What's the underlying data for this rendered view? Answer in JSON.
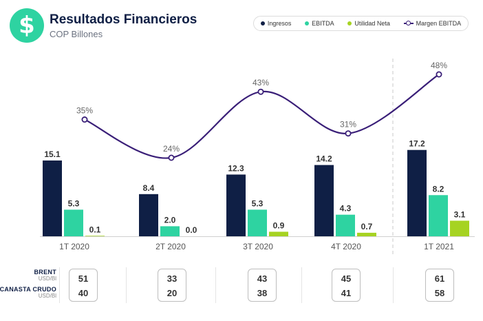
{
  "header": {
    "icon": "dollar-icon",
    "logo_glyph": "$",
    "title": "Resultados Financieros",
    "subtitle": "COP Billones"
  },
  "colors": {
    "ingresos": "#0f1f45",
    "ebitda": "#2ed3a1",
    "utilidad": "#a6d322",
    "margen": "#3a1f78"
  },
  "chart_data": {
    "type": "bar",
    "title": "Resultados Financieros",
    "subtitle": "COP Billones",
    "categories": [
      "1T 2020",
      "2T 2020",
      "3T 2020",
      "4T 2020",
      "1T 2021"
    ],
    "series": [
      {
        "name": "Ingresos",
        "type": "bar",
        "values": [
          15.1,
          8.4,
          12.3,
          14.2,
          17.2
        ],
        "labels": [
          "15.1",
          "8.4",
          "12.3",
          "14.2",
          "17.2"
        ]
      },
      {
        "name": "EBITDA",
        "type": "bar",
        "values": [
          5.3,
          2.0,
          5.3,
          4.3,
          8.2
        ],
        "labels": [
          "5.3",
          "2.0",
          "5.3",
          "4.3",
          "8.2"
        ]
      },
      {
        "name": "Utilidad Neta",
        "type": "bar",
        "values": [
          0.1,
          0.0,
          0.9,
          0.7,
          3.1
        ],
        "labels": [
          "0.1",
          "0.0",
          "0.9",
          "0.7",
          "3.1"
        ]
      },
      {
        "name": "Margen EBITDA",
        "type": "line",
        "values": [
          35,
          24,
          43,
          31,
          48
        ],
        "labels": [
          "35%",
          "24%",
          "43%",
          "31%",
          "48%"
        ]
      }
    ],
    "ylim": [
      0,
      20
    ],
    "margin_ylim": [
      20,
      50
    ],
    "legend": [
      "Ingresos",
      "EBITDA",
      "Utilidad Neta",
      "Margen EBITDA"
    ],
    "legend_position": "top-right",
    "grid": false,
    "xlabel": "",
    "ylabel": ""
  },
  "bottom_table": {
    "rows": [
      {
        "name": "BRENT",
        "unit": "USD/Bl",
        "values": [
          "51",
          "33",
          "43",
          "45",
          "61"
        ]
      },
      {
        "name": "CANASTA CRUDO",
        "unit": "USD/Bl",
        "values": [
          "40",
          "20",
          "38",
          "41",
          "58"
        ]
      }
    ]
  }
}
